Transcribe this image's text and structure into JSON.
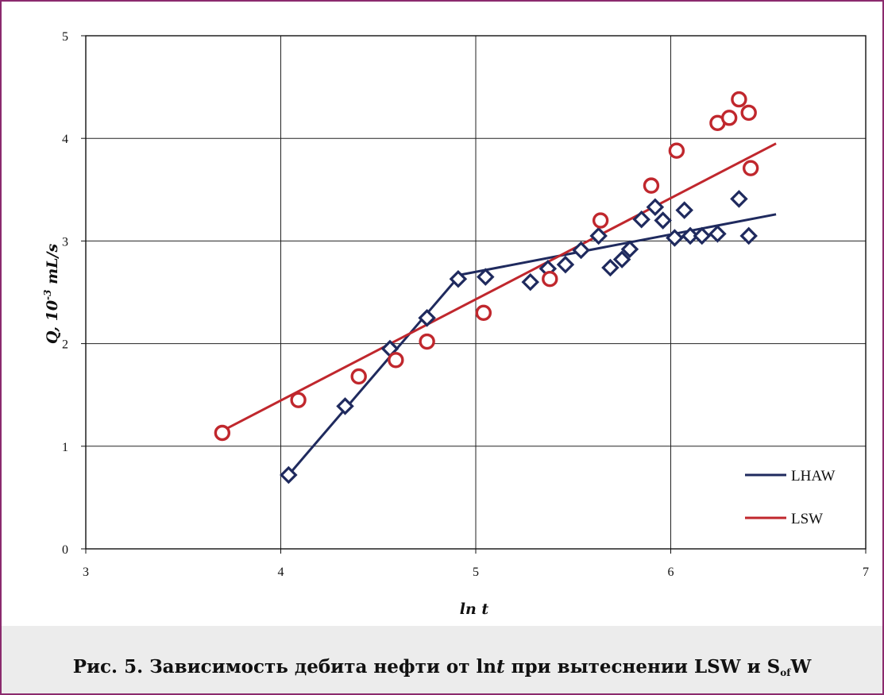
{
  "chart_data": {
    "type": "scatter",
    "title": "",
    "xlabel": "ln t",
    "ylabel": "Q, 10-3 mL/s",
    "ylabel_prefix": "Q, 10",
    "ylabel_exp": "-3",
    "ylabel_unit": " mL/s",
    "xlim": [
      3,
      7
    ],
    "ylim": [
      0,
      5
    ],
    "x_ticks": [
      "3",
      "4",
      "5",
      "6",
      "7"
    ],
    "y_ticks": [
      "0",
      "1",
      "2",
      "3",
      "4",
      "5"
    ],
    "grid": true,
    "legend_position": "bottom-right",
    "series": [
      {
        "name": "LHAW",
        "color": "#1f2a5e",
        "marker": "diamond",
        "points": [
          [
            4.04,
            0.72
          ],
          [
            4.33,
            1.39
          ],
          [
            4.56,
            1.95
          ],
          [
            4.75,
            2.25
          ],
          [
            4.91,
            2.63
          ],
          [
            5.05,
            2.65
          ],
          [
            5.28,
            2.6
          ],
          [
            5.37,
            2.73
          ],
          [
            5.46,
            2.77
          ],
          [
            5.54,
            2.91
          ],
          [
            5.63,
            3.05
          ],
          [
            5.69,
            2.74
          ],
          [
            5.75,
            2.82
          ],
          [
            5.79,
            2.92
          ],
          [
            5.85,
            3.21
          ],
          [
            5.92,
            3.33
          ],
          [
            5.96,
            3.2
          ],
          [
            6.02,
            3.03
          ],
          [
            6.07,
            3.3
          ],
          [
            6.1,
            3.05
          ],
          [
            6.16,
            3.05
          ],
          [
            6.24,
            3.07
          ],
          [
            6.35,
            3.41
          ],
          [
            6.4,
            3.05
          ]
        ],
        "fit_line": [
          [
            4.04,
            0.72
          ],
          [
            4.92,
            2.67
          ],
          [
            6.54,
            3.26
          ]
        ]
      },
      {
        "name": "LSW",
        "color": "#c0272d",
        "marker": "circle",
        "points": [
          [
            3.7,
            1.13
          ],
          [
            4.09,
            1.45
          ],
          [
            4.4,
            1.68
          ],
          [
            4.59,
            1.84
          ],
          [
            4.75,
            2.02
          ],
          [
            5.04,
            2.3
          ],
          [
            5.38,
            2.63
          ],
          [
            5.64,
            3.2
          ],
          [
            5.9,
            3.54
          ],
          [
            6.03,
            3.88
          ],
          [
            6.24,
            4.15
          ],
          [
            6.3,
            4.2
          ],
          [
            6.35,
            4.38
          ],
          [
            6.4,
            4.25
          ],
          [
            6.41,
            3.71
          ]
        ],
        "fit_line": [
          [
            3.7,
            1.15
          ],
          [
            6.54,
            3.95
          ]
        ]
      }
    ]
  },
  "caption": {
    "part1": "Рис. 5. Зависимость дебита нефти от  ln",
    "italic": "t",
    "part2": " при вытеснении LSW и S",
    "sub": "of",
    "part3": "W"
  }
}
